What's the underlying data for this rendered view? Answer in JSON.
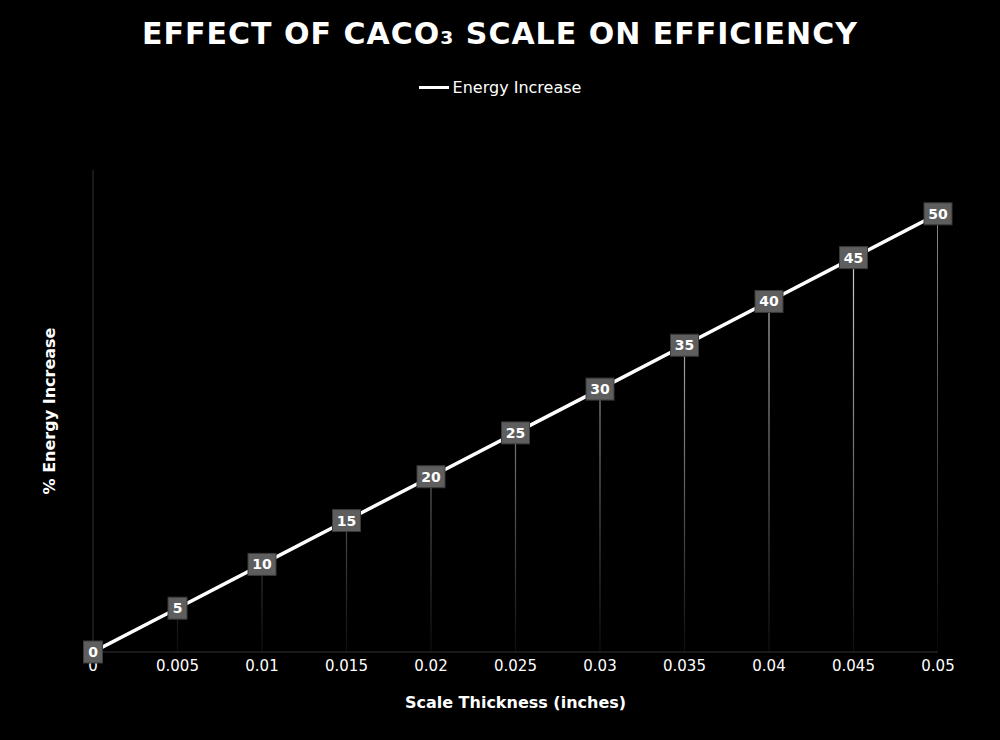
{
  "chart_data": {
    "type": "line",
    "title": "EFFECT OF CACO₃ SCALE ON EFFICIENCY",
    "x_label": "Scale Thickness (inches)",
    "y_label": "% Energy Increase",
    "x": [
      0,
      0.005,
      0.01,
      0.015,
      0.02,
      0.025,
      0.03,
      0.035,
      0.04,
      0.045,
      0.05
    ],
    "series": [
      {
        "name": "Energy Increase",
        "color": "#ffffff",
        "values": [
          0,
          5,
          10,
          15,
          20,
          25,
          30,
          35,
          40,
          45,
          50
        ]
      }
    ],
    "xlim": [
      0,
      0.05
    ],
    "xticks": [
      0,
      0.005,
      0.01,
      0.015,
      0.02,
      0.025,
      0.03,
      0.035,
      0.04,
      0.045,
      0.05
    ],
    "ylim": [
      0,
      55
    ],
    "data_labels": true,
    "tick_labels": "x",
    "grid": false,
    "legend": "top"
  }
}
